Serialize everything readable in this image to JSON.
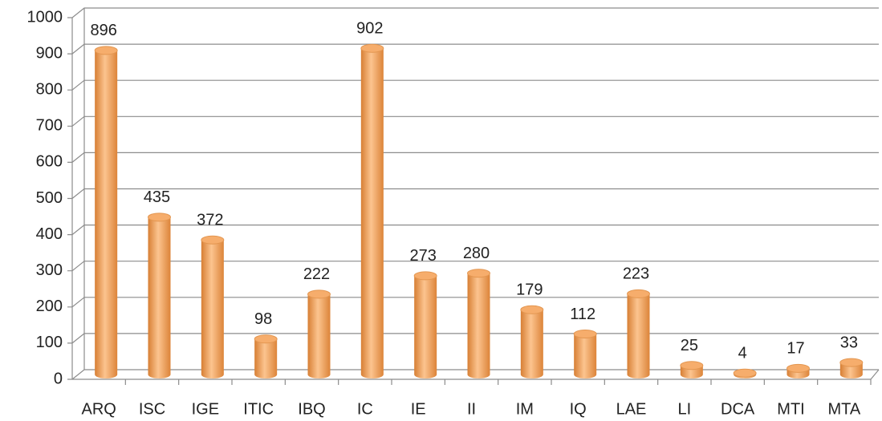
{
  "chart_data": {
    "type": "bar",
    "categories": [
      "ARQ",
      "ISC",
      "IGE",
      "ITIC",
      "IBQ",
      "IC",
      "IE",
      "II",
      "IM",
      "IQ",
      "LAE",
      "LI",
      "DCA",
      "MTI",
      "MTA"
    ],
    "values": [
      896,
      435,
      372,
      98,
      222,
      902,
      273,
      280,
      179,
      112,
      223,
      25,
      4,
      17,
      33
    ],
    "color": "#f0a05a",
    "ylim": [
      0,
      1000
    ],
    "yticks": [
      0,
      100,
      200,
      300,
      400,
      500,
      600,
      700,
      800,
      900,
      1000
    ],
    "grid": true
  }
}
